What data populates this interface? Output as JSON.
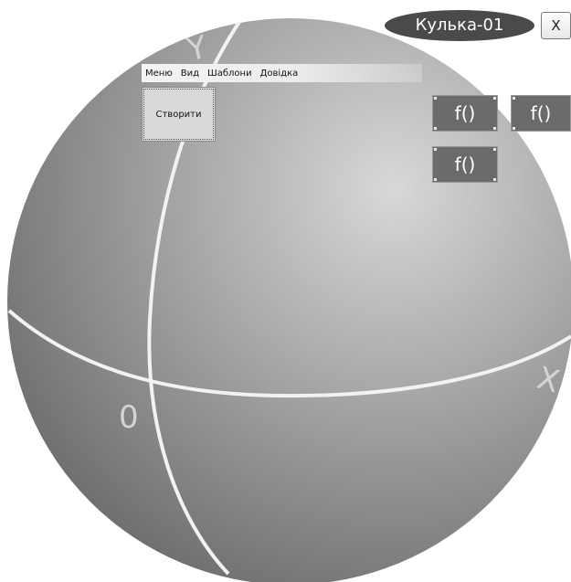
{
  "window": {
    "title": "Кулька-01",
    "close_label": "X"
  },
  "menu": {
    "items": [
      "Меню",
      "Вид",
      "Шаблони",
      "Довідка"
    ]
  },
  "toolbar": {
    "create_label": "Створити"
  },
  "functions": {
    "items": [
      "f()",
      "f()",
      "f()"
    ]
  },
  "axes": {
    "y_label": "Y",
    "x_label": "X",
    "origin_label": "0"
  },
  "colors": {
    "sphere_highlight": "#d8d8d8",
    "sphere_shadow": "#6e6e6e",
    "axis_line": "#f2f2f2",
    "title_bg": "#4a4a4a",
    "function_bg": "#6b6b6b"
  }
}
